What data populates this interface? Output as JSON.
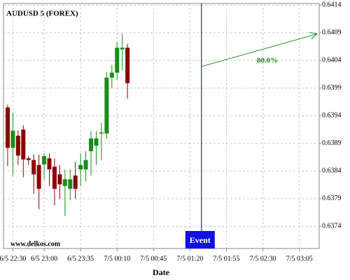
{
  "chart_data": {
    "type": "candlestick",
    "title": "AUDUSD 5 (FOREX)",
    "watermark": "www.delkos.com",
    "x_label": "Date",
    "x": [
      "6/5 22:25",
      "6/5 22:30",
      "6/5 22:35",
      "6/5 22:40",
      "6/5 22:45",
      "6/5 22:50",
      "6/5 22:55",
      "6/5 23:00",
      "6/5 23:05",
      "6/5 23:10",
      "6/5 23:15",
      "6/5 23:20",
      "6/5 23:25",
      "6/5 23:30",
      "6/5 23:35",
      "6/5 23:40",
      "6/5 23:45",
      "6/5 23:50",
      "6/5 23:55",
      "7/5 00:00",
      "7/5 00:05",
      "7/5 00:10",
      "7/5 00:15",
      "7/5 00:20"
    ],
    "open": [
      0.63955,
      0.63882,
      0.63904,
      0.63915,
      0.63863,
      0.6386,
      0.63851,
      0.63852,
      0.63863,
      0.63848,
      0.63834,
      0.63813,
      0.63808,
      0.63832,
      0.63843,
      0.63843,
      0.63876,
      0.63886,
      0.63908,
      0.63908,
      0.64009,
      0.64018,
      0.6406,
      0.64063
    ],
    "high": [
      0.6396,
      0.63946,
      0.63914,
      0.63923,
      0.63867,
      0.6387,
      0.6387,
      0.63872,
      0.63872,
      0.63863,
      0.63851,
      0.63843,
      0.63843,
      0.63857,
      0.63872,
      0.63876,
      0.63912,
      0.63912,
      0.63927,
      0.64019,
      0.64032,
      0.64073,
      0.64088,
      0.6407
    ],
    "low": [
      0.63849,
      0.63832,
      0.63851,
      0.63829,
      0.63851,
      0.63799,
      0.63771,
      0.63825,
      0.63813,
      0.63778,
      0.6379,
      0.63759,
      0.63787,
      0.6379,
      0.63813,
      0.63821,
      0.63832,
      0.63851,
      0.6386,
      0.63898,
      0.6399,
      0.64005,
      0.64022,
      0.63971
    ],
    "close": [
      0.63882,
      0.63913,
      0.63868,
      0.63861,
      0.6386,
      0.63834,
      0.63808,
      0.63867,
      0.63843,
      0.63808,
      0.63816,
      0.63825,
      0.63825,
      0.63808,
      0.63851,
      0.6386,
      0.63899,
      0.63899,
      0.6391,
      0.64009,
      0.64018,
      0.64063,
      0.64063,
      0.63999
    ],
    "up_color": "#1a8c1a",
    "down_color": "#8b0000",
    "xlim": [
      "6/5 22:21",
      "7/5 03:24"
    ],
    "xticks": [
      "6/5 22:30",
      "6/5 23:00",
      "6/5 23:35",
      "7/5 00:10",
      "7/5 00:45",
      "7/5 01:20",
      "7/5 01:55",
      "7/5 02:30",
      "7/5 03:05"
    ],
    "ylim": [
      0.637,
      0.64143
    ],
    "yticks": [
      0.6374,
      0.6379,
      0.6384,
      0.6389,
      0.6394,
      0.6399,
      0.6404,
      0.6409,
      0.6414
    ],
    "grid": true,
    "event": {
      "x": "7/5 01:31",
      "label": "Event",
      "color": "#1010e0"
    },
    "prediction": {
      "start_x": "7/5 01:31",
      "start_y": 0.64029,
      "end_x": "7/5 03:22",
      "end_y": 0.64088,
      "label": "80.0%",
      "color": "#1a8c1a"
    }
  }
}
